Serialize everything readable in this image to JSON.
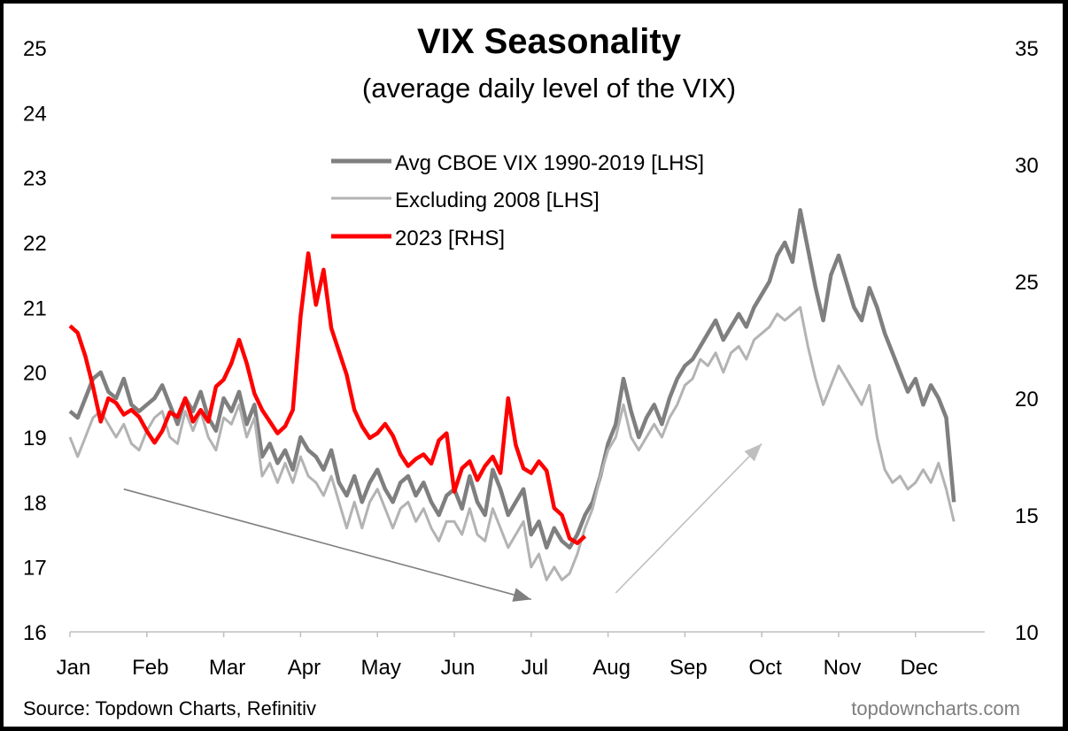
{
  "chart_data": {
    "type": "line",
    "title": "VIX Seasonality",
    "subtitle": "(average daily level of the VIX)",
    "source": "Source: Topdown Charts, Refinitiv",
    "watermark": "topdowncharts.com",
    "x_axis": {
      "labels": [
        "Jan",
        "Feb",
        "Mar",
        "Apr",
        "May",
        "Jun",
        "Jul",
        "Aug",
        "Sep",
        "Oct",
        "Nov",
        "Dec"
      ]
    },
    "y_left": {
      "range": [
        16,
        25
      ],
      "ticks": [
        16,
        17,
        18,
        19,
        20,
        21,
        22,
        23,
        24,
        25
      ]
    },
    "y_right": {
      "range": [
        10,
        35
      ],
      "ticks": [
        10,
        15,
        20,
        25,
        30,
        35
      ]
    },
    "legend": {
      "placement": "top-center",
      "entries": [
        "Avg CBOE VIX 1990-2019 [LHS]",
        "Excluding 2008 [LHS]",
        "2023 [RHS]"
      ]
    },
    "series": [
      {
        "name": "Avg CBOE VIX 1990-2019 [LHS]",
        "axis": "left",
        "color": "#7f7f7f",
        "points": [
          [
            0,
            19.4
          ],
          [
            0.1,
            19.3
          ],
          [
            0.2,
            19.6
          ],
          [
            0.3,
            19.9
          ],
          [
            0.4,
            20.0
          ],
          [
            0.5,
            19.7
          ],
          [
            0.6,
            19.6
          ],
          [
            0.7,
            19.9
          ],
          [
            0.8,
            19.5
          ],
          [
            0.9,
            19.4
          ],
          [
            1.0,
            19.5
          ],
          [
            1.1,
            19.6
          ],
          [
            1.2,
            19.8
          ],
          [
            1.3,
            19.5
          ],
          [
            1.4,
            19.2
          ],
          [
            1.5,
            19.6
          ],
          [
            1.6,
            19.4
          ],
          [
            1.7,
            19.7
          ],
          [
            1.8,
            19.3
          ],
          [
            1.9,
            19.1
          ],
          [
            2.0,
            19.6
          ],
          [
            2.1,
            19.4
          ],
          [
            2.2,
            19.7
          ],
          [
            2.3,
            19.2
          ],
          [
            2.4,
            19.5
          ],
          [
            2.5,
            18.7
          ],
          [
            2.6,
            18.9
          ],
          [
            2.7,
            18.6
          ],
          [
            2.8,
            18.8
          ],
          [
            2.9,
            18.5
          ],
          [
            3.0,
            19.0
          ],
          [
            3.1,
            18.8
          ],
          [
            3.2,
            18.7
          ],
          [
            3.3,
            18.5
          ],
          [
            3.4,
            18.8
          ],
          [
            3.5,
            18.3
          ],
          [
            3.6,
            18.1
          ],
          [
            3.7,
            18.4
          ],
          [
            3.8,
            18.0
          ],
          [
            3.9,
            18.3
          ],
          [
            4.0,
            18.5
          ],
          [
            4.1,
            18.2
          ],
          [
            4.2,
            18.0
          ],
          [
            4.3,
            18.3
          ],
          [
            4.4,
            18.4
          ],
          [
            4.5,
            18.1
          ],
          [
            4.6,
            18.3
          ],
          [
            4.7,
            18.0
          ],
          [
            4.8,
            17.8
          ],
          [
            4.9,
            18.1
          ],
          [
            5.0,
            18.2
          ],
          [
            5.1,
            17.9
          ],
          [
            5.2,
            18.4
          ],
          [
            5.3,
            18.0
          ],
          [
            5.4,
            17.8
          ],
          [
            5.5,
            18.5
          ],
          [
            5.6,
            18.2
          ],
          [
            5.7,
            17.8
          ],
          [
            5.8,
            18.0
          ],
          [
            5.9,
            18.2
          ],
          [
            6.0,
            17.5
          ],
          [
            6.1,
            17.7
          ],
          [
            6.2,
            17.3
          ],
          [
            6.3,
            17.6
          ],
          [
            6.4,
            17.4
          ],
          [
            6.5,
            17.3
          ],
          [
            6.6,
            17.5
          ],
          [
            6.7,
            17.8
          ],
          [
            6.8,
            18.0
          ],
          [
            6.9,
            18.4
          ],
          [
            7.0,
            18.9
          ],
          [
            7.1,
            19.2
          ],
          [
            7.2,
            19.9
          ],
          [
            7.3,
            19.4
          ],
          [
            7.4,
            19.0
          ],
          [
            7.5,
            19.3
          ],
          [
            7.6,
            19.5
          ],
          [
            7.7,
            19.2
          ],
          [
            7.8,
            19.6
          ],
          [
            7.9,
            19.9
          ],
          [
            8.0,
            20.1
          ],
          [
            8.1,
            20.2
          ],
          [
            8.2,
            20.4
          ],
          [
            8.3,
            20.6
          ],
          [
            8.4,
            20.8
          ],
          [
            8.5,
            20.5
          ],
          [
            8.6,
            20.7
          ],
          [
            8.7,
            20.9
          ],
          [
            8.8,
            20.7
          ],
          [
            8.9,
            21.0
          ],
          [
            9.0,
            21.2
          ],
          [
            9.1,
            21.4
          ],
          [
            9.2,
            21.8
          ],
          [
            9.3,
            22.0
          ],
          [
            9.4,
            21.7
          ],
          [
            9.5,
            22.5
          ],
          [
            9.6,
            21.9
          ],
          [
            9.7,
            21.3
          ],
          [
            9.8,
            20.8
          ],
          [
            9.9,
            21.5
          ],
          [
            10.0,
            21.8
          ],
          [
            10.1,
            21.4
          ],
          [
            10.2,
            21.0
          ],
          [
            10.3,
            20.8
          ],
          [
            10.4,
            21.3
          ],
          [
            10.5,
            21.0
          ],
          [
            10.6,
            20.6
          ],
          [
            10.7,
            20.3
          ],
          [
            10.8,
            20.0
          ],
          [
            10.9,
            19.7
          ],
          [
            11.0,
            19.9
          ],
          [
            11.1,
            19.5
          ],
          [
            11.2,
            19.8
          ],
          [
            11.3,
            19.6
          ],
          [
            11.4,
            19.3
          ],
          [
            11.5,
            18.0
          ]
        ]
      },
      {
        "name": "Excluding 2008 [LHS]",
        "axis": "left",
        "color": "#b3b3b3",
        "points": [
          [
            0,
            19.0
          ],
          [
            0.1,
            18.7
          ],
          [
            0.2,
            19.0
          ],
          [
            0.3,
            19.3
          ],
          [
            0.4,
            19.4
          ],
          [
            0.5,
            19.2
          ],
          [
            0.6,
            19.0
          ],
          [
            0.7,
            19.2
          ],
          [
            0.8,
            18.9
          ],
          [
            0.9,
            18.8
          ],
          [
            1.0,
            19.1
          ],
          [
            1.1,
            19.3
          ],
          [
            1.2,
            19.4
          ],
          [
            1.3,
            19.0
          ],
          [
            1.4,
            18.9
          ],
          [
            1.5,
            19.4
          ],
          [
            1.6,
            19.1
          ],
          [
            1.7,
            19.4
          ],
          [
            1.8,
            19.0
          ],
          [
            1.9,
            18.8
          ],
          [
            2.0,
            19.3
          ],
          [
            2.1,
            19.2
          ],
          [
            2.2,
            19.5
          ],
          [
            2.3,
            19.0
          ],
          [
            2.4,
            19.3
          ],
          [
            2.5,
            18.4
          ],
          [
            2.6,
            18.6
          ],
          [
            2.7,
            18.3
          ],
          [
            2.8,
            18.6
          ],
          [
            2.9,
            18.3
          ],
          [
            3.0,
            18.7
          ],
          [
            3.1,
            18.4
          ],
          [
            3.2,
            18.3
          ],
          [
            3.3,
            18.1
          ],
          [
            3.4,
            18.4
          ],
          [
            3.5,
            18.0
          ],
          [
            3.6,
            17.6
          ],
          [
            3.7,
            18.0
          ],
          [
            3.8,
            17.6
          ],
          [
            3.9,
            18.0
          ],
          [
            4.0,
            18.2
          ],
          [
            4.1,
            17.9
          ],
          [
            4.2,
            17.6
          ],
          [
            4.3,
            17.9
          ],
          [
            4.4,
            18.0
          ],
          [
            4.5,
            17.7
          ],
          [
            4.6,
            17.9
          ],
          [
            4.7,
            17.6
          ],
          [
            4.8,
            17.4
          ],
          [
            4.9,
            17.7
          ],
          [
            5.0,
            17.7
          ],
          [
            5.1,
            17.5
          ],
          [
            5.2,
            17.9
          ],
          [
            5.3,
            17.5
          ],
          [
            5.4,
            17.4
          ],
          [
            5.5,
            17.9
          ],
          [
            5.6,
            17.6
          ],
          [
            5.7,
            17.3
          ],
          [
            5.8,
            17.5
          ],
          [
            5.9,
            17.7
          ],
          [
            6.0,
            17.0
          ],
          [
            6.1,
            17.2
          ],
          [
            6.2,
            16.8
          ],
          [
            6.3,
            17.0
          ],
          [
            6.4,
            16.8
          ],
          [
            6.5,
            16.9
          ],
          [
            6.6,
            17.2
          ],
          [
            6.7,
            17.6
          ],
          [
            6.8,
            17.9
          ],
          [
            6.9,
            18.4
          ],
          [
            7.0,
            18.8
          ],
          [
            7.1,
            19.0
          ],
          [
            7.2,
            19.5
          ],
          [
            7.3,
            19.0
          ],
          [
            7.4,
            18.8
          ],
          [
            7.5,
            19.0
          ],
          [
            7.6,
            19.2
          ],
          [
            7.7,
            19.0
          ],
          [
            7.8,
            19.3
          ],
          [
            7.9,
            19.5
          ],
          [
            8.0,
            19.8
          ],
          [
            8.1,
            19.9
          ],
          [
            8.2,
            20.2
          ],
          [
            8.3,
            20.1
          ],
          [
            8.4,
            20.3
          ],
          [
            8.5,
            20.0
          ],
          [
            8.6,
            20.3
          ],
          [
            8.7,
            20.4
          ],
          [
            8.8,
            20.2
          ],
          [
            8.9,
            20.5
          ],
          [
            9.0,
            20.6
          ],
          [
            9.1,
            20.7
          ],
          [
            9.2,
            20.9
          ],
          [
            9.3,
            20.8
          ],
          [
            9.4,
            20.9
          ],
          [
            9.5,
            21.0
          ],
          [
            9.6,
            20.4
          ],
          [
            9.7,
            19.9
          ],
          [
            9.8,
            19.5
          ],
          [
            9.9,
            19.8
          ],
          [
            10.0,
            20.1
          ],
          [
            10.1,
            19.9
          ],
          [
            10.2,
            19.7
          ],
          [
            10.3,
            19.5
          ],
          [
            10.4,
            19.8
          ],
          [
            10.5,
            19.0
          ],
          [
            10.6,
            18.5
          ],
          [
            10.7,
            18.3
          ],
          [
            10.8,
            18.4
          ],
          [
            10.9,
            18.2
          ],
          [
            11.0,
            18.3
          ],
          [
            11.1,
            18.5
          ],
          [
            11.2,
            18.3
          ],
          [
            11.3,
            18.6
          ],
          [
            11.4,
            18.2
          ],
          [
            11.5,
            17.7
          ]
        ]
      },
      {
        "name": "2023 [RHS]",
        "axis": "right",
        "color": "#ff0000",
        "points": [
          [
            0,
            23.1
          ],
          [
            0.1,
            22.8
          ],
          [
            0.2,
            21.8
          ],
          [
            0.3,
            20.5
          ],
          [
            0.4,
            19.0
          ],
          [
            0.5,
            20.0
          ],
          [
            0.6,
            19.8
          ],
          [
            0.7,
            19.3
          ],
          [
            0.8,
            19.5
          ],
          [
            0.9,
            19.2
          ],
          [
            1.0,
            18.6
          ],
          [
            1.1,
            18.1
          ],
          [
            1.2,
            18.6
          ],
          [
            1.3,
            19.4
          ],
          [
            1.4,
            19.2
          ],
          [
            1.5,
            20.0
          ],
          [
            1.6,
            19.0
          ],
          [
            1.7,
            19.5
          ],
          [
            1.8,
            19.0
          ],
          [
            1.9,
            20.5
          ],
          [
            2.0,
            20.8
          ],
          [
            2.1,
            21.5
          ],
          [
            2.2,
            22.5
          ],
          [
            2.3,
            21.5
          ],
          [
            2.4,
            20.2
          ],
          [
            2.5,
            19.5
          ],
          [
            2.6,
            19.0
          ],
          [
            2.7,
            18.5
          ],
          [
            2.8,
            18.8
          ],
          [
            2.9,
            19.5
          ],
          [
            3.0,
            23.5
          ],
          [
            3.1,
            26.2
          ],
          [
            3.2,
            24.0
          ],
          [
            3.3,
            25.5
          ],
          [
            3.4,
            23.0
          ],
          [
            3.5,
            22.0
          ],
          [
            3.6,
            21.0
          ],
          [
            3.7,
            19.5
          ],
          [
            3.8,
            18.8
          ],
          [
            3.9,
            18.3
          ],
          [
            4.0,
            18.5
          ],
          [
            4.1,
            18.9
          ],
          [
            4.2,
            18.4
          ],
          [
            4.3,
            17.6
          ],
          [
            4.4,
            17.1
          ],
          [
            4.5,
            17.4
          ],
          [
            4.6,
            17.6
          ],
          [
            4.7,
            17.2
          ],
          [
            4.8,
            18.2
          ],
          [
            4.9,
            18.5
          ],
          [
            5.0,
            16.0
          ],
          [
            5.1,
            17.0
          ],
          [
            5.2,
            17.3
          ],
          [
            5.3,
            16.5
          ],
          [
            5.4,
            17.1
          ],
          [
            5.5,
            17.5
          ],
          [
            5.6,
            16.8
          ],
          [
            5.7,
            20.0
          ],
          [
            5.8,
            18.0
          ],
          [
            5.9,
            17.0
          ],
          [
            6.0,
            16.8
          ],
          [
            6.1,
            17.3
          ],
          [
            6.2,
            16.9
          ],
          [
            6.3,
            15.3
          ],
          [
            6.4,
            15.0
          ],
          [
            6.5,
            14.0
          ],
          [
            6.6,
            13.8
          ],
          [
            6.7,
            14.1
          ]
        ]
      }
    ],
    "annotations": [
      {
        "type": "arrow",
        "color": "#7f7f7f",
        "from": [
          0.7,
          18.2
        ],
        "to": [
          6.0,
          16.5
        ]
      },
      {
        "type": "arrow",
        "color": "#bfbfbf",
        "from": [
          7.1,
          16.6
        ],
        "to": [
          9.0,
          18.9
        ]
      }
    ],
    "grid": false
  }
}
